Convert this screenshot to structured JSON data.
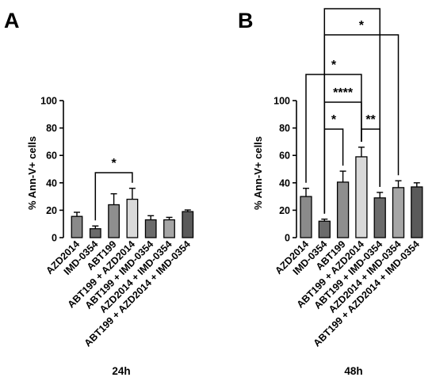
{
  "chart_data": [
    {
      "panel": "A",
      "type": "bar",
      "time_label": "24h",
      "ylabel": "% Ann-V+ cells",
      "ylim": [
        0,
        100
      ],
      "yticks": [
        "0",
        "20",
        "40",
        "60",
        "80",
        "100"
      ],
      "categories": [
        "AZD2014",
        "IMD-0354",
        "ABT199",
        "ABT199 + AZD2014",
        "ABT199 + IMD-0354",
        "AZD2014 + IMD-0354",
        "ABT199 + AZD2014 + IMD-0354"
      ],
      "values": [
        15.5,
        6.5,
        24,
        28,
        13,
        13,
        19
      ],
      "errors": [
        3,
        2,
        8,
        8,
        3,
        1.8,
        1.2
      ],
      "colors": [
        "#8a8a8a",
        "#6b6b6b",
        "#8e8e8e",
        "#d9d9d9",
        "#6b6b6b",
        "#a6a6a6",
        "#5a5a5a"
      ],
      "significance": [
        {
          "from": 1,
          "to": 3,
          "label": "*"
        }
      ]
    },
    {
      "panel": "B",
      "type": "bar",
      "time_label": "48h",
      "ylabel": "% Ann-V+ cells",
      "ylim": [
        0,
        100
      ],
      "yticks": [
        "0",
        "20",
        "40",
        "60",
        "80",
        "100"
      ],
      "categories": [
        "AZD2014",
        "IMD-0354",
        "ABT199",
        "ABT199 + AZD2014",
        "ABT199 + IMD-0354",
        "AZD2014 + IMD-0354",
        "ABT199 + AZD2014 + IMD-0354"
      ],
      "values": [
        30,
        12,
        40.5,
        59,
        29,
        36.5,
        37
      ],
      "errors": [
        6,
        1.5,
        8,
        7,
        4,
        5,
        3
      ],
      "colors": [
        "#8a8a8a",
        "#6b6b6b",
        "#8e8e8e",
        "#d9d9d9",
        "#6b6b6b",
        "#a6a6a6",
        "#5a5a5a"
      ],
      "significance": [
        {
          "from": 1,
          "to": 2,
          "label": "*"
        },
        {
          "from": 3,
          "to": 4,
          "label": "**"
        },
        {
          "from": 1,
          "to": 3,
          "label": "****"
        },
        {
          "from": 0,
          "to": 3,
          "label": "*"
        },
        {
          "from": 1,
          "to": 5,
          "label": "*"
        },
        {
          "from": 1,
          "to": 4,
          "label": "*"
        }
      ]
    }
  ]
}
